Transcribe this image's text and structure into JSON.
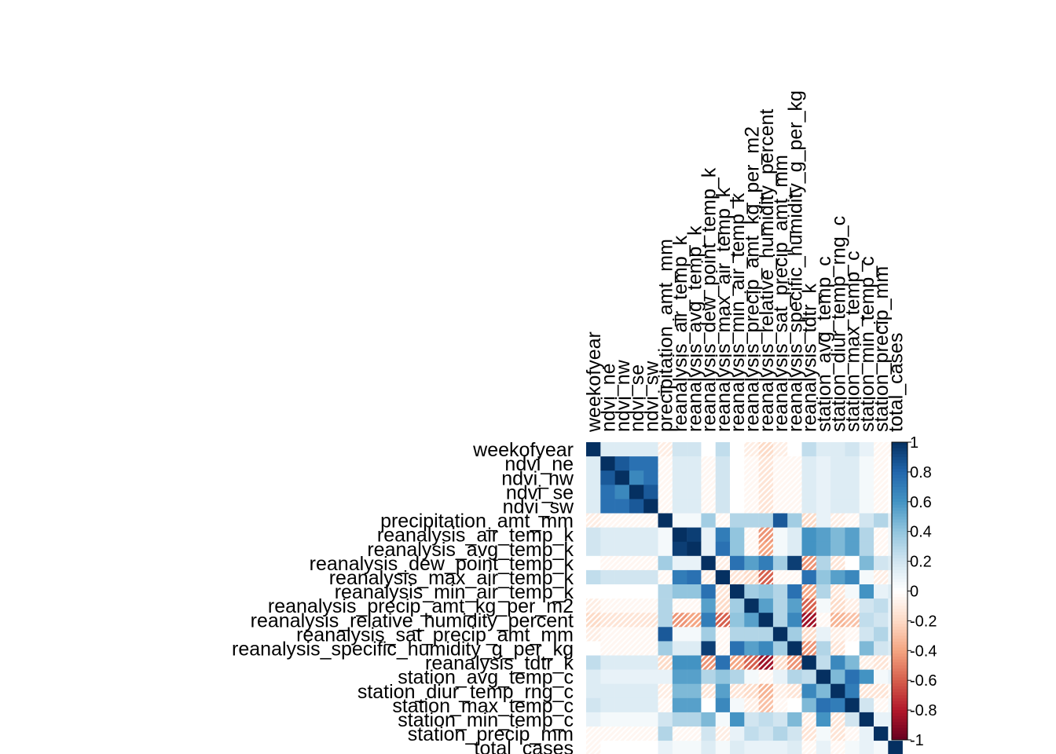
{
  "chart_data": {
    "type": "heatmap",
    "title": "",
    "variables": [
      "weekofyear",
      "ndvi_ne",
      "ndvi_nw",
      "ndvi_se",
      "ndvi_sw",
      "precipitation_amt_mm",
      "reanalysis_air_temp_k",
      "reanalysis_avg_temp_k",
      "reanalysis_dew_point_temp_k",
      "reanalysis_max_air_temp_k",
      "reanalysis_min_air_temp_k",
      "reanalysis_precip_amt_kg_per_m2",
      "reanalysis_relative_humidity_percent",
      "reanalysis_sat_precip_amt_mm",
      "reanalysis_specific_humidity_g_per_kg",
      "reanalysis_tdtr_k",
      "station_avg_temp_c",
      "station_diur_temp_rng_c",
      "station_max_temp_c",
      "station_min_temp_c",
      "station_precip_mm",
      "total_cases"
    ],
    "matrix": [
      [
        1.0,
        0.15,
        0.15,
        0.15,
        0.15,
        -0.1,
        0.2,
        0.2,
        0.0,
        0.25,
        0.0,
        -0.1,
        -0.2,
        -0.1,
        0.0,
        0.25,
        0.15,
        0.15,
        0.2,
        0.1,
        -0.05,
        -0.05
      ],
      [
        0.15,
        1.0,
        0.85,
        0.75,
        0.75,
        -0.05,
        0.15,
        0.15,
        -0.05,
        0.2,
        0.0,
        -0.05,
        -0.15,
        -0.05,
        -0.05,
        0.15,
        0.1,
        0.15,
        0.15,
        0.05,
        -0.05,
        0.0
      ],
      [
        0.15,
        0.85,
        1.0,
        0.65,
        0.75,
        -0.05,
        0.15,
        0.15,
        -0.05,
        0.2,
        0.0,
        -0.05,
        -0.15,
        -0.05,
        -0.05,
        0.15,
        0.1,
        0.15,
        0.15,
        0.05,
        -0.05,
        0.0
      ],
      [
        0.15,
        0.75,
        0.65,
        1.0,
        0.85,
        -0.05,
        0.15,
        0.15,
        -0.05,
        0.2,
        0.0,
        -0.05,
        -0.15,
        -0.05,
        -0.05,
        0.15,
        0.1,
        0.15,
        0.15,
        0.05,
        -0.05,
        0.0
      ],
      [
        0.15,
        0.75,
        0.75,
        0.85,
        1.0,
        -0.05,
        0.15,
        0.15,
        -0.05,
        0.2,
        0.0,
        -0.05,
        -0.15,
        -0.05,
        -0.05,
        0.15,
        0.1,
        0.15,
        0.15,
        0.05,
        -0.05,
        0.0
      ],
      [
        -0.1,
        -0.05,
        -0.05,
        -0.05,
        -0.05,
        1.0,
        0.05,
        0.05,
        0.35,
        -0.05,
        0.3,
        0.3,
        0.3,
        0.85,
        0.35,
        -0.2,
        0.1,
        -0.1,
        -0.05,
        0.2,
        0.3,
        0.1
      ],
      [
        0.2,
        0.15,
        0.15,
        0.15,
        0.15,
        0.05,
        1.0,
        0.95,
        0.1,
        0.7,
        0.4,
        -0.05,
        -0.45,
        0.05,
        0.15,
        0.6,
        0.55,
        0.45,
        0.55,
        0.3,
        -0.05,
        0.05
      ],
      [
        0.2,
        0.15,
        0.15,
        0.15,
        0.15,
        0.05,
        0.95,
        1.0,
        0.1,
        0.75,
        0.4,
        -0.05,
        -0.4,
        0.05,
        0.15,
        0.6,
        0.55,
        0.45,
        0.55,
        0.3,
        -0.05,
        0.05
      ],
      [
        0.0,
        -0.05,
        -0.05,
        -0.05,
        -0.05,
        0.35,
        0.1,
        0.1,
        1.0,
        -0.1,
        0.75,
        0.55,
        0.7,
        0.35,
        0.95,
        -0.45,
        0.3,
        -0.15,
        0.0,
        0.45,
        0.2,
        0.15
      ],
      [
        0.25,
        0.2,
        0.2,
        0.2,
        0.2,
        -0.05,
        0.7,
        0.75,
        -0.1,
        1.0,
        -0.15,
        -0.2,
        -0.6,
        -0.05,
        -0.05,
        0.75,
        0.4,
        0.55,
        0.65,
        0.05,
        -0.1,
        0.05
      ],
      [
        0.0,
        0.0,
        0.0,
        0.0,
        0.0,
        0.3,
        0.4,
        0.4,
        0.75,
        -0.15,
        1.0,
        0.35,
        0.4,
        0.3,
        0.75,
        -0.4,
        0.3,
        -0.15,
        0.05,
        0.6,
        0.1,
        0.15
      ],
      [
        -0.1,
        -0.05,
        -0.05,
        -0.05,
        -0.05,
        0.3,
        -0.05,
        -0.05,
        0.55,
        -0.2,
        0.35,
        1.0,
        0.55,
        0.3,
        0.55,
        -0.6,
        0.05,
        -0.2,
        -0.1,
        0.2,
        0.25,
        0.1
      ],
      [
        -0.2,
        -0.15,
        -0.15,
        -0.15,
        -0.15,
        0.3,
        -0.45,
        -0.4,
        0.7,
        -0.6,
        0.4,
        0.55,
        1.0,
        0.3,
        0.65,
        -0.85,
        -0.05,
        -0.35,
        -0.3,
        0.25,
        0.2,
        0.1
      ],
      [
        -0.1,
        -0.05,
        -0.05,
        -0.05,
        -0.05,
        0.85,
        0.05,
        0.05,
        0.35,
        -0.05,
        0.3,
        0.3,
        0.3,
        1.0,
        0.35,
        -0.2,
        0.1,
        -0.1,
        -0.05,
        0.2,
        0.3,
        0.1
      ],
      [
        0.0,
        -0.05,
        -0.05,
        -0.05,
        -0.05,
        0.35,
        0.15,
        0.15,
        0.95,
        -0.05,
        0.75,
        0.55,
        0.65,
        0.35,
        1.0,
        -0.45,
        0.3,
        -0.15,
        0.0,
        0.45,
        0.2,
        0.15
      ],
      [
        0.25,
        0.15,
        0.15,
        0.15,
        0.15,
        -0.2,
        0.6,
        0.6,
        -0.45,
        0.75,
        -0.4,
        -0.6,
        -0.85,
        -0.2,
        -0.45,
        1.0,
        0.25,
        0.65,
        0.45,
        -0.1,
        -0.15,
        -0.05
      ],
      [
        0.15,
        0.1,
        0.1,
        0.1,
        0.1,
        0.1,
        0.55,
        0.55,
        0.3,
        0.4,
        0.3,
        0.05,
        -0.05,
        0.1,
        0.3,
        0.25,
        1.0,
        0.45,
        0.75,
        0.6,
        0.05,
        0.1
      ],
      [
        0.15,
        0.15,
        0.15,
        0.15,
        0.15,
        -0.1,
        0.45,
        0.45,
        -0.15,
        0.55,
        -0.15,
        -0.2,
        -0.35,
        -0.1,
        -0.15,
        0.65,
        0.45,
        1.0,
        0.7,
        -0.15,
        -0.15,
        -0.05
      ],
      [
        0.2,
        0.15,
        0.15,
        0.15,
        0.15,
        -0.05,
        0.55,
        0.55,
        0.0,
        0.65,
        0.05,
        -0.1,
        -0.3,
        -0.05,
        0.0,
        0.45,
        0.75,
        0.7,
        1.0,
        0.2,
        -0.05,
        0.05
      ],
      [
        0.1,
        0.05,
        0.05,
        0.05,
        0.05,
        0.2,
        0.3,
        0.3,
        0.45,
        0.05,
        0.6,
        0.2,
        0.25,
        0.2,
        0.45,
        -0.1,
        0.6,
        -0.15,
        0.2,
        1.0,
        0.1,
        0.1
      ],
      [
        -0.05,
        -0.05,
        -0.05,
        -0.05,
        -0.05,
        0.3,
        -0.05,
        -0.05,
        0.2,
        -0.1,
        0.1,
        0.25,
        0.2,
        0.3,
        0.2,
        -0.15,
        0.05,
        -0.15,
        -0.05,
        0.1,
        1.0,
        0.05
      ],
      [
        -0.05,
        0.0,
        0.0,
        0.0,
        0.0,
        0.1,
        0.05,
        0.05,
        0.15,
        0.05,
        0.15,
        0.1,
        0.1,
        0.1,
        0.15,
        -0.05,
        0.1,
        -0.05,
        0.05,
        0.1,
        0.05,
        1.0
      ]
    ],
    "colorbar": {
      "range": [
        -1,
        1
      ],
      "ticks": [
        "1",
        "0.8",
        "0.6",
        "0.4",
        "0.2",
        "0",
        "-0.2",
        "-0.4",
        "-0.6",
        "-0.8",
        "-1"
      ],
      "palette": [
        "#67001F",
        "#B2182B",
        "#D6604D",
        "#F4A582",
        "#FDDBC7",
        "#FFFFFF",
        "#D1E5F0",
        "#92C5DE",
        "#4393C3",
        "#2166AC",
        "#053061"
      ]
    },
    "negative_cells_hatched": true,
    "grid": false,
    "legend": "right"
  }
}
